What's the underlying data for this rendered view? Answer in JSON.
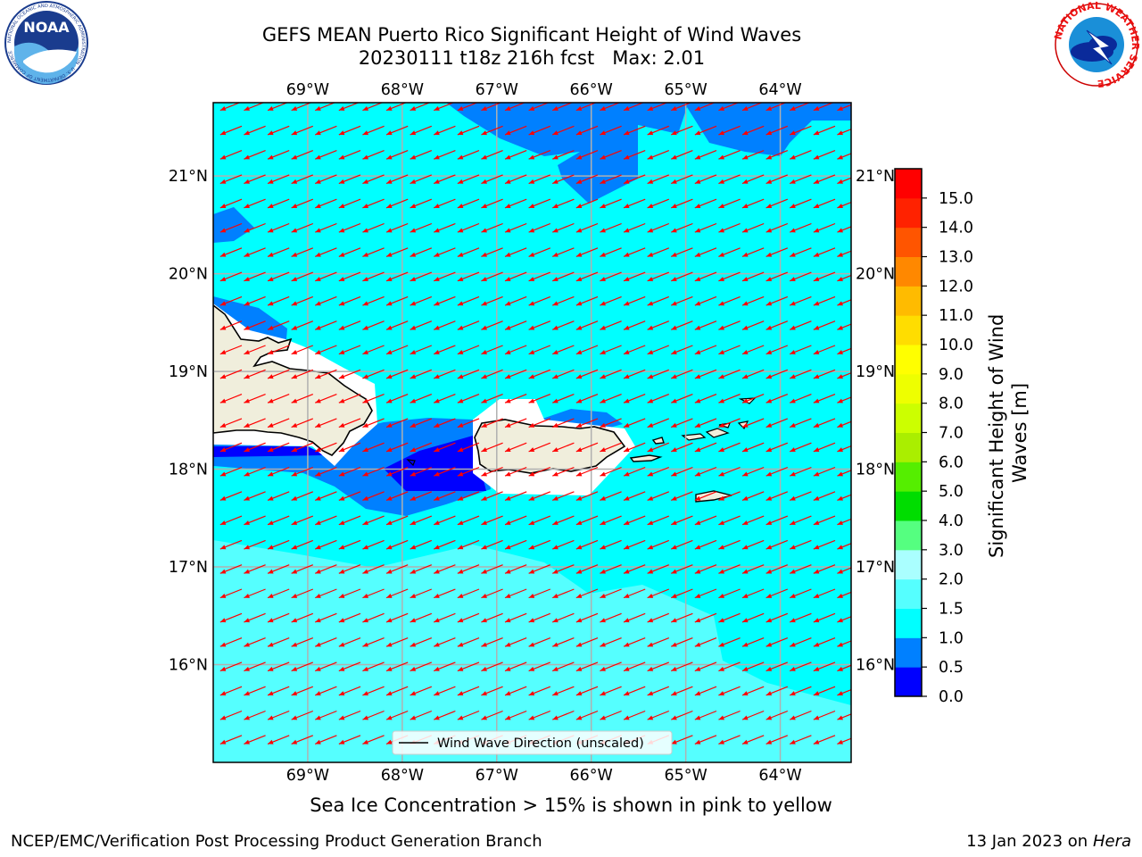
{
  "header": {
    "title_line1": "GEFS MEAN Puerto Rico Significant Height of Wind Waves",
    "title_line2": "20230111 t18z 216h fcst   Max: 2.01"
  },
  "logos": {
    "left": "noaa-logo",
    "right": "nws-logo",
    "noaa_text": "NOAA",
    "noaa_ring_text": "NATIONAL OCEANIC AND ATMOSPHERIC ADMINISTRATION · U.S. DEPARTMENT OF COMMERCE",
    "nws_ring_text": "NATIONAL WEATHER SERVICE"
  },
  "map": {
    "lon_labels": [
      "69°W",
      "68°W",
      "67°W",
      "66°W",
      "65°W",
      "64°W"
    ],
    "lat_labels": [
      "21°N",
      "20°N",
      "19°N",
      "18°N",
      "17°N",
      "16°N"
    ],
    "lon_range": [
      -70.0,
      -63.25
    ],
    "lat_range": [
      15.0,
      21.75
    ],
    "legend_label": "Wind Wave Direction (unscaled)",
    "ocean_color": "#00ffff",
    "land_color": "#f0eedc",
    "arrow_color": "#ff0000"
  },
  "colorbar": {
    "label": "Significant Height of Wind Waves [m]",
    "ticks": [
      "0.0",
      "0.5",
      "1.0",
      "1.5",
      "2.0",
      "3.0",
      "4.0",
      "5.0",
      "6.0",
      "7.0",
      "8.0",
      "9.0",
      "10.0",
      "11.0",
      "12.0",
      "13.0",
      "14.0",
      "15.0"
    ],
    "colors": [
      "#0000ff",
      "#0080ff",
      "#00ffff",
      "#55ffff",
      "#aaffff",
      "#55ff80",
      "#00dd00",
      "#55ee00",
      "#aaee00",
      "#ccff00",
      "#eeff00",
      "#ffff00",
      "#ffdd00",
      "#ffbb00",
      "#ff8800",
      "#ff5500",
      "#ff2200",
      "#ff0000"
    ]
  },
  "caption": "Sea Ice Concentration > 15% is shown in pink to yellow",
  "footer": {
    "left": "NCEP/EMC/Verification Post Processing Product Generation Branch",
    "right_prefix": "13 Jan 2023 on ",
    "right_host": "Hera"
  }
}
